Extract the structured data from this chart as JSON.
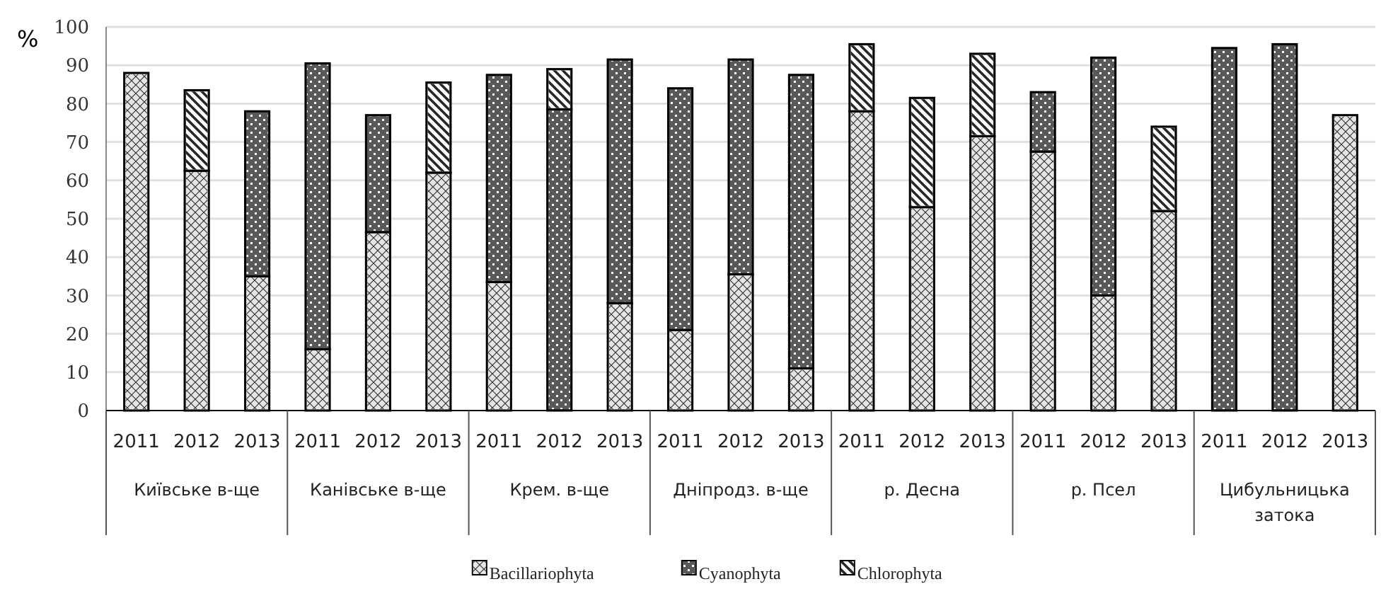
{
  "chart_data": {
    "type": "bar",
    "stacked": true,
    "ylabel": "%",
    "categories": [
      "2011",
      "2012",
      "2013",
      "2011",
      "2012",
      "2013",
      "2011",
      "2012",
      "2013",
      "2011",
      "2012",
      "2013",
      "2011",
      "2012",
      "2013",
      "2011",
      "2012",
      "2013",
      "2011",
      "2012",
      "2013"
    ],
    "series": [
      {
        "name": "Bacillariophyta",
        "color": "#d0d0d0",
        "values": [
          88,
          62.5,
          35,
          16,
          46.5,
          62,
          33.5,
          0,
          28,
          21,
          35.5,
          11,
          78,
          53,
          71.5,
          67.5,
          30,
          52,
          0,
          0,
          77
        ]
      },
      {
        "name": "Cyanophyta",
        "color": "#595959",
        "values": [
          0,
          0,
          43,
          74.5,
          30.5,
          0,
          54,
          78.5,
          63.5,
          63,
          56,
          76.5,
          0,
          0,
          0,
          15.5,
          62,
          0,
          94.5,
          95.5,
          0
        ]
      },
      {
        "name": "Chlorophyta",
        "color": "#9a9a9a",
        "values": [
          0,
          21,
          0,
          0,
          0,
          23.5,
          0,
          10.5,
          0,
          0,
          0,
          0,
          17.5,
          28.5,
          21.5,
          0,
          0,
          22,
          0,
          0,
          0
        ]
      }
    ],
    "annotations": [
      "Київське в-ще",
      "Канівське в-ще",
      "Крем. в-ще",
      "Дніпродз. в-ще",
      "р. Десна",
      "р. Псел",
      "Цибульницька затока"
    ],
    "ylim": [
      0,
      100
    ],
    "yticks": [
      0,
      10,
      20,
      30,
      40,
      50,
      60,
      70,
      80,
      90,
      100
    ],
    "grid": "y",
    "legend": "bottom"
  }
}
